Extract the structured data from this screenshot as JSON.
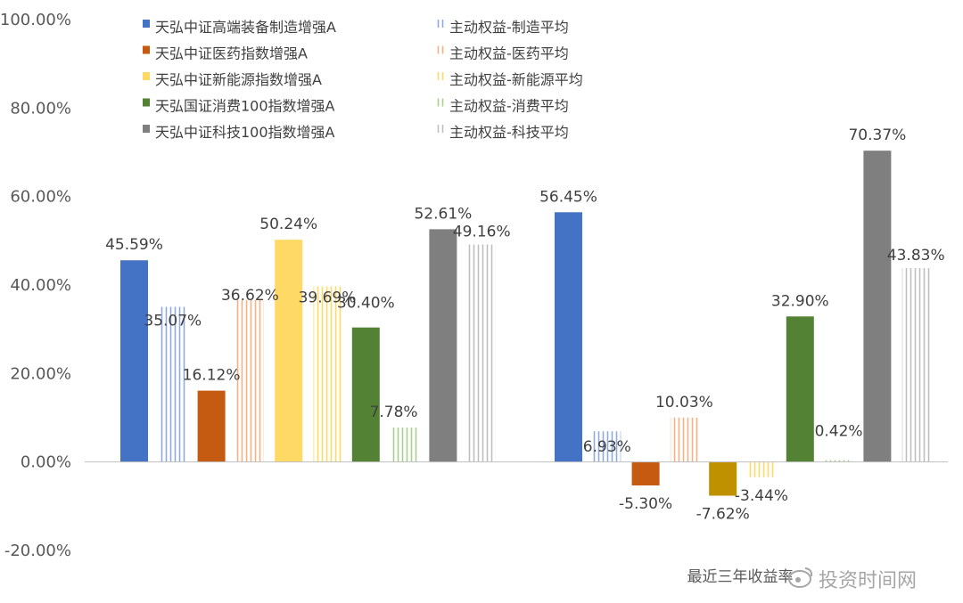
{
  "chart_data": {
    "type": "bar",
    "categories": [
      "",
      "最近三年收益率"
    ],
    "ylim": [
      -20,
      100
    ],
    "ytick_step": 20,
    "ytick_labels": [
      "100.00%",
      "80.00%",
      "60.00%",
      "40.00%",
      "20.00%",
      "0.00%",
      "-20.00%"
    ],
    "grid": false,
    "legend_position": "top-left",
    "series": [
      {
        "name": "天弘中证高端装备制造增强A",
        "values": [
          45.59,
          56.45
        ],
        "labels": [
          "45.59%",
          "56.45%"
        ],
        "color": "#4472C4",
        "style": "solid"
      },
      {
        "name": "主动权益-制造平均",
        "values": [
          35.07,
          6.93
        ],
        "labels": [
          "35.07%",
          "6.93%"
        ],
        "color": "#8FAADC",
        "style": "hatched"
      },
      {
        "name": "天弘中证医药指数增强A",
        "values": [
          16.12,
          -5.3
        ],
        "labels": [
          "16.12%",
          "-5.30%"
        ],
        "color": "#C55A11",
        "style": "solid"
      },
      {
        "name": "主动权益-医药平均",
        "values": [
          36.62,
          10.03
        ],
        "labels": [
          "36.62%",
          "10.03%"
        ],
        "color": "#F4B183",
        "style": "hatched"
      },
      {
        "name": "天弘中证新能源指数增强A",
        "values": [
          50.24,
          -7.62
        ],
        "labels": [
          "50.24%",
          "-7.62%"
        ],
        "color_first": "#FFD966",
        "color": "#BF9000",
        "style": "solid"
      },
      {
        "name": "主动权益-新能源平均",
        "values": [
          39.69,
          -3.44
        ],
        "labels": [
          "39.69%",
          "-3.44%"
        ],
        "color": "#FFD966",
        "style": "hatched"
      },
      {
        "name": "天弘国证消费100指数增强A",
        "values": [
          30.4,
          32.9
        ],
        "labels": [
          "30.40%",
          "32.90%"
        ],
        "color": "#548235",
        "style": "solid"
      },
      {
        "name": "主动权益-消费平均",
        "values": [
          7.78,
          0.42
        ],
        "labels": [
          "7.78%",
          "0.42%"
        ],
        "color": "#A9D18E",
        "style": "hatched"
      },
      {
        "name": "天弘中证科技100指数增强A",
        "values": [
          52.61,
          70.37
        ],
        "labels": [
          "52.61%",
          "70.37%"
        ],
        "color": "#7F7F7F",
        "style": "solid"
      },
      {
        "name": "主动权益-科技平均",
        "values": [
          49.16,
          43.83
        ],
        "labels": [
          "49.16%",
          "43.83%"
        ],
        "color": "#BFBFBF",
        "style": "hatched"
      }
    ]
  },
  "watermark": "投资时间网"
}
